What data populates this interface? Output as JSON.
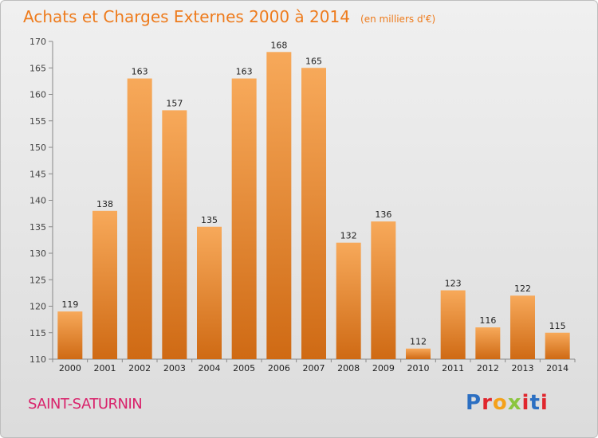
{
  "header": {
    "title": "Achats et Charges Externes 2000 à 2014",
    "unit": "(en milliers d'€)"
  },
  "footer": {
    "commune": "SAINT-SATURNIN",
    "logo": "Proxiti"
  },
  "colors": {
    "title": "#ee7b1c",
    "commune": "#d9226b",
    "bar_light": "#f7a95a",
    "bar_dark": "#cf6a14",
    "background_top": "#f0f0f0",
    "background_bottom": "#dcdcdc"
  },
  "chart_data": {
    "type": "bar",
    "title": "Achats et Charges Externes 2000 à 2014",
    "subtitle": "(en milliers d'€)",
    "xlabel": "",
    "ylabel": "",
    "categories": [
      "2000",
      "2001",
      "2002",
      "2003",
      "2004",
      "2005",
      "2006",
      "2007",
      "2008",
      "2009",
      "2010",
      "2011",
      "2012",
      "2013",
      "2014"
    ],
    "values": [
      119,
      138,
      163,
      157,
      135,
      163,
      168,
      165,
      132,
      136,
      112,
      123,
      116,
      122,
      115
    ],
    "ylim": [
      110,
      170
    ],
    "yticks": [
      110,
      115,
      120,
      125,
      130,
      135,
      140,
      145,
      150,
      155,
      160,
      165,
      170
    ],
    "grid": false,
    "legend": "none"
  }
}
